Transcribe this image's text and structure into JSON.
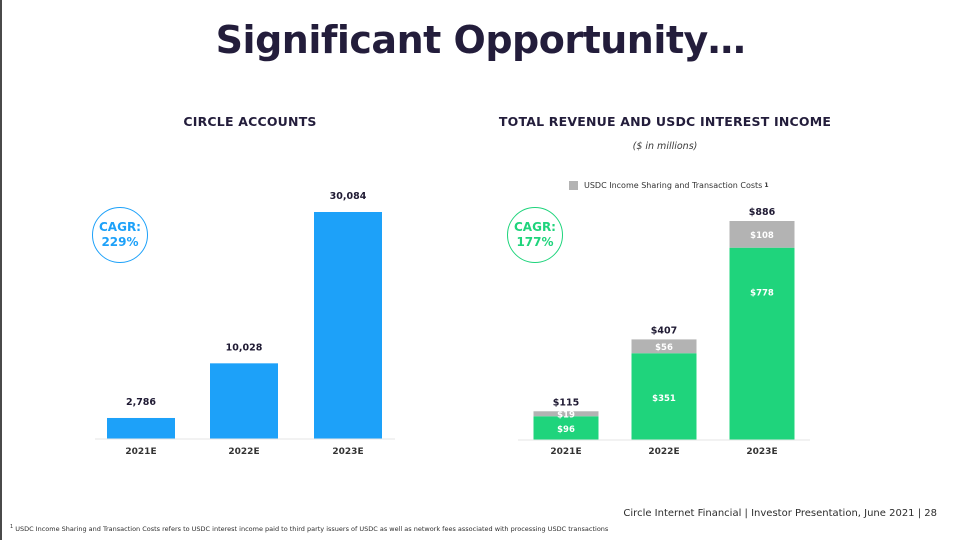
{
  "title": "Significant Opportunity…",
  "colors": {
    "blue": "#1da1f9",
    "green": "#1fd47c",
    "gray": "#b3b3b3"
  },
  "chart_data": [
    {
      "type": "bar",
      "title": "CIRCLE ACCOUNTS",
      "categories": [
        "2021E",
        "2022E",
        "2023E"
      ],
      "values": [
        2786,
        10028,
        30084
      ],
      "value_labels": [
        "2,786",
        "10,028",
        "30,084"
      ],
      "cagr_label": "CAGR:",
      "cagr_value": "229%",
      "ylim": [
        0,
        30084
      ]
    },
    {
      "type": "bar",
      "stacked": true,
      "title": "TOTAL REVENUE AND USDC INTEREST INCOME",
      "subtitle": "($ in millions)",
      "categories": [
        "2021E",
        "2022E",
        "2023E"
      ],
      "series": [
        {
          "values": [
            96,
            351,
            778
          ],
          "labels": [
            "$96",
            "$351",
            "$778"
          ]
        },
        {
          "name": "USDC Income Sharing and Transaction Costs",
          "values": [
            19,
            56,
            108
          ],
          "labels": [
            "$19",
            "$56",
            "$108"
          ]
        }
      ],
      "totals": [
        115,
        407,
        886
      ],
      "total_labels": [
        "$115",
        "$407",
        "$886"
      ],
      "legend_marker": "1",
      "cagr_label": "CAGR:",
      "cagr_value": "177%",
      "ylim": [
        0,
        886
      ]
    }
  ],
  "footer": "Circle Internet Financial | Investor Presentation, June 2021 | 28",
  "footnote": {
    "marker": "1",
    "text": "USDC Income Sharing and Transaction Costs refers to USDC interest income paid to third party issuers of USDC as well as network fees associated with processing USDC transactions"
  }
}
